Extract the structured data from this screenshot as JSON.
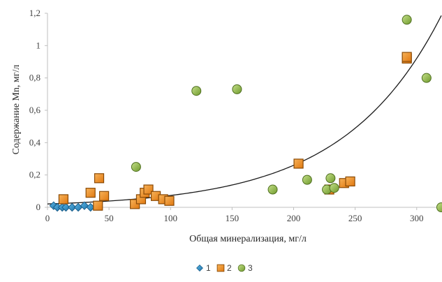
{
  "chart_data": {
    "type": "scatter",
    "xlabel": "Общая минерализация, мг/л",
    "ylabel": "Содержание Mn, мг/л",
    "xlim": [
      0,
      320
    ],
    "ylim": [
      0,
      1.2
    ],
    "x_ticks": [
      "0",
      "50",
      "100",
      "150",
      "200",
      "250",
      "300"
    ],
    "x_tick_values": [
      0,
      50,
      100,
      150,
      200,
      250,
      300
    ],
    "y_ticks": [
      "0",
      "0,2",
      "0,4",
      "0,6",
      "0,8",
      "1",
      "1,2"
    ],
    "y_tick_values": [
      0,
      0.2,
      0.4,
      0.6,
      0.8,
      1.0,
      1.2
    ],
    "grid": false,
    "legend_position": "bottom",
    "series": [
      {
        "name": "1",
        "marker": "diamond",
        "color": "#2e8cc4",
        "points": [
          [
            5,
            0.01
          ],
          [
            8,
            0.0
          ],
          [
            12,
            0.0
          ],
          [
            15,
            0.0
          ],
          [
            20,
            0.0
          ],
          [
            25,
            0.0
          ],
          [
            30,
            0.01
          ],
          [
            35,
            0.0
          ]
        ]
      },
      {
        "name": "2",
        "marker": "square",
        "color": "#f28e1c",
        "points": [
          [
            13,
            0.05
          ],
          [
            35,
            0.09
          ],
          [
            41,
            0.01
          ],
          [
            42,
            0.18
          ],
          [
            46,
            0.07
          ],
          [
            71,
            0.02
          ],
          [
            76,
            0.05
          ],
          [
            79,
            0.09
          ],
          [
            82,
            0.11
          ],
          [
            88,
            0.07
          ],
          [
            94,
            0.05
          ],
          [
            99,
            0.04
          ],
          [
            204,
            0.27
          ],
          [
            229,
            0.11
          ],
          [
            241,
            0.15
          ],
          [
            246,
            0.16
          ],
          [
            292,
            0.92
          ],
          [
            292,
            0.93
          ]
        ]
      },
      {
        "name": "3",
        "marker": "circle",
        "color": "#92c045",
        "points": [
          [
            72,
            0.25
          ],
          [
            121,
            0.72
          ],
          [
            154,
            0.73
          ],
          [
            183,
            0.11
          ],
          [
            211,
            0.17
          ],
          [
            227,
            0.11
          ],
          [
            230,
            0.18
          ],
          [
            233,
            0.12
          ],
          [
            292,
            1.16
          ],
          [
            308,
            0.8
          ],
          [
            320,
            0.0
          ]
        ]
      }
    ],
    "trendline": {
      "type": "exponential",
      "color": "#1a1a1a",
      "a": 0.0207,
      "b": 0.01265,
      "x_range": [
        0,
        320
      ]
    }
  }
}
